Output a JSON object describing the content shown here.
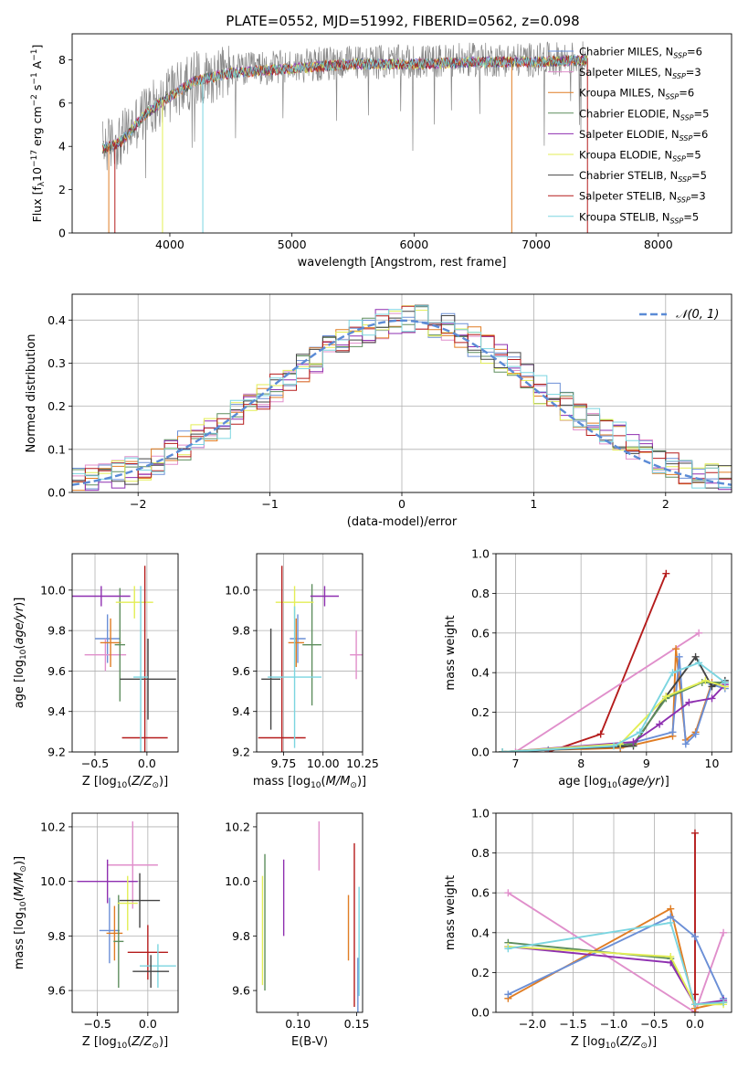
{
  "figure": {
    "title": "PLATE=0552, MJD=51992, FIBERID=0562, z=0.098"
  },
  "colors": {
    "grid": "#b0b0b0",
    "axis": "#000000",
    "normal_curve": "#5b8bd6"
  },
  "chart_data": [
    {
      "id": "spectrum",
      "type": "line",
      "xlabel": "wavelength [Angstrom, rest frame]",
      "ylabel": "Flux [f_λ 10^-17 erg cm^-2 s^-1 A^-1]",
      "xlim": [
        3200,
        8600
      ],
      "ylim": [
        0,
        9.2
      ],
      "xticks": [
        4000,
        5000,
        6000,
        7000,
        8000
      ],
      "yticks": [
        0,
        2,
        4,
        6,
        8
      ],
      "grid": false,
      "legend_position": "top-right",
      "data_envelope": {
        "x": [
          3450,
          3600,
          3800,
          4000,
          4200,
          4500,
          5000,
          5500,
          6000,
          6500,
          7000,
          7500
        ],
        "y": [
          4.0,
          4.3,
          5.6,
          6.4,
          7.1,
          7.5,
          7.7,
          7.9,
          7.9,
          8.0,
          8.0,
          8.1
        ]
      },
      "series": [
        {
          "name": "Chabrier MILES, N_SSP=6",
          "color": "#6b8fd6"
        },
        {
          "name": "Salpeter MILES, N_SSP=3",
          "color": "#e08fcb"
        },
        {
          "name": "Kroupa MILES, N_SSP=6",
          "color": "#e07d24"
        },
        {
          "name": "Chabrier ELODIE, N_SSP=5",
          "color": "#5e8e5e"
        },
        {
          "name": "Salpeter ELODIE, N_SSP=6",
          "color": "#8e2fb0"
        },
        {
          "name": "Kroupa ELODIE, N_SSP=5",
          "color": "#e3ee55"
        },
        {
          "name": "Chabrier STELIB, N_SSP=5",
          "color": "#444444"
        },
        {
          "name": "Salpeter STELIB, N_SSP=3",
          "color": "#b51c1c"
        },
        {
          "name": "Kroupa STELIB, N_SSP=5",
          "color": "#7bd5e0"
        }
      ]
    },
    {
      "id": "residuals",
      "type": "line",
      "xlabel": "(data-model)/error",
      "ylabel": "Normed distribution",
      "xlim": [
        -2.5,
        2.5
      ],
      "ylim": [
        0,
        0.46
      ],
      "xticks": [
        -2,
        -1,
        0,
        1,
        2
      ],
      "yticks": [
        0.0,
        0.1,
        0.2,
        0.3,
        0.4
      ],
      "grid": true,
      "legend_position": "top-right",
      "curve_name": "𝒩(0, 1)",
      "bin_edges_start": -2.5,
      "bin_width": 0.1,
      "reference_values": [
        0.03,
        0.03,
        0.04,
        0.04,
        0.05,
        0.06,
        0.07,
        0.09,
        0.11,
        0.13,
        0.14,
        0.16,
        0.18,
        0.2,
        0.22,
        0.24,
        0.27,
        0.29,
        0.31,
        0.33,
        0.35,
        0.37,
        0.38,
        0.39,
        0.4,
        0.4,
        0.4,
        0.39,
        0.38,
        0.37,
        0.35,
        0.33,
        0.31,
        0.29,
        0.27,
        0.24,
        0.22,
        0.2,
        0.18,
        0.16,
        0.14,
        0.13,
        0.11,
        0.09,
        0.07,
        0.06,
        0.05,
        0.04,
        0.04,
        0.03
      ]
    },
    {
      "id": "age_vs_Z",
      "type": "scatter",
      "xlabel": "Z [log10(Z/Z⊙)]",
      "ylabel": "age  [log10(age/yr)]",
      "xlim": [
        -0.72,
        0.3
      ],
      "ylim": [
        9.2,
        10.18
      ],
      "xticks": [
        -0.5,
        0.0
      ],
      "xtick_labels": [
        "−0.5",
        "0.0"
      ],
      "yticks": [
        9.2,
        9.4,
        9.6,
        9.8,
        10.0
      ],
      "grid": true,
      "points": [
        {
          "x": -0.38,
          "y": 9.76,
          "xerr": 0.12,
          "yerr": 0.12,
          "color": "#6b8fd6"
        },
        {
          "x": -0.4,
          "y": 9.68,
          "xerr": 0.2,
          "yerr": 0.08,
          "color": "#e08fcb"
        },
        {
          "x": -0.35,
          "y": 9.74,
          "xerr": 0.1,
          "yerr": 0.12,
          "color": "#e07d24"
        },
        {
          "x": -0.26,
          "y": 9.73,
          "xerr": 0.05,
          "yerr": 0.28,
          "color": "#5e8e5e"
        },
        {
          "x": -0.44,
          "y": 9.97,
          "xerr": 0.28,
          "yerr": 0.05,
          "color": "#8e2fb0"
        },
        {
          "x": -0.12,
          "y": 9.94,
          "xerr": 0.18,
          "yerr": 0.08,
          "color": "#e3ee55"
        },
        {
          "x": 0.01,
          "y": 9.56,
          "xerr": 0.27,
          "yerr": 0.2,
          "color": "#444444"
        },
        {
          "x": -0.02,
          "y": 9.27,
          "xerr": 0.22,
          "yerr": 0.85,
          "color": "#b51c1c"
        },
        {
          "x": -0.06,
          "y": 9.57,
          "xerr": 0.07,
          "yerr": 0.45,
          "color": "#7bd5e0"
        }
      ]
    },
    {
      "id": "age_vs_mass",
      "type": "scatter",
      "xlabel": "mass [log10(M/M⊙)]",
      "ylabel": "",
      "xlim": [
        9.58,
        10.25
      ],
      "ylim": [
        9.2,
        10.18
      ],
      "xticks": [
        9.75,
        10.0,
        10.25
      ],
      "xtick_labels": [
        "9.75",
        "10.00",
        "10.25"
      ],
      "yticks": [
        9.2,
        9.4,
        9.6,
        9.8,
        10.0
      ],
      "grid": true,
      "points": [
        {
          "x": 9.84,
          "y": 9.76,
          "xerr": 0.05,
          "yerr": 0.12,
          "color": "#6b8fd6"
        },
        {
          "x": 10.21,
          "y": 9.68,
          "xerr": 0.04,
          "yerr": 0.12,
          "color": "#e08fcb"
        },
        {
          "x": 9.83,
          "y": 9.74,
          "xerr": 0.05,
          "yerr": 0.12,
          "color": "#e07d24"
        },
        {
          "x": 9.93,
          "y": 9.73,
          "xerr": 0.06,
          "yerr": 0.3,
          "color": "#5e8e5e"
        },
        {
          "x": 10.01,
          "y": 9.97,
          "xerr": 0.09,
          "yerr": 0.05,
          "color": "#8e2fb0"
        },
        {
          "x": 9.82,
          "y": 9.94,
          "xerr": 0.12,
          "yerr": 0.08,
          "color": "#e3ee55"
        },
        {
          "x": 9.67,
          "y": 9.56,
          "xerr": 0.06,
          "yerr": 0.25,
          "color": "#444444"
        },
        {
          "x": 9.74,
          "y": 9.27,
          "xerr": 0.15,
          "yerr": 0.85,
          "color": "#b51c1c"
        },
        {
          "x": 9.82,
          "y": 9.57,
          "xerr": 0.17,
          "yerr": 0.35,
          "color": "#7bd5e0"
        }
      ]
    },
    {
      "id": "massweight_vs_age",
      "type": "line",
      "xlabel": "age  [log10(age/yr)]",
      "ylabel": "mass weight",
      "xlim": [
        6.7,
        10.3
      ],
      "ylim": [
        0,
        1.0
      ],
      "xticks": [
        7,
        8,
        9,
        10
      ],
      "yticks": [
        0.0,
        0.2,
        0.4,
        0.6,
        0.8,
        1.0
      ],
      "grid": true,
      "series": [
        {
          "color": "#b51c1c",
          "x": [
            7.5,
            8.3,
            9.3
          ],
          "y": [
            0.0,
            0.09,
            0.9
          ]
        },
        {
          "color": "#e08fcb",
          "x": [
            7.0,
            9.8
          ],
          "y": [
            0.0,
            0.6
          ]
        },
        {
          "color": "#e07d24",
          "x": [
            6.8,
            7.5,
            8.6,
            9.4,
            9.45,
            9.6,
            9.75,
            10.0,
            10.2
          ],
          "y": [
            0.0,
            0.01,
            0.02,
            0.08,
            0.52,
            0.06,
            0.1,
            0.35,
            0.33
          ]
        },
        {
          "color": "#6b8fd6",
          "x": [
            6.8,
            7.5,
            8.6,
            9.4,
            9.5,
            9.6,
            9.75,
            10.0,
            10.2
          ],
          "y": [
            0.0,
            0.01,
            0.03,
            0.1,
            0.48,
            0.04,
            0.09,
            0.34,
            0.32
          ]
        },
        {
          "color": "#444444",
          "x": [
            6.8,
            8.8,
            9.3,
            9.75,
            10.0,
            10.2
          ],
          "y": [
            0.0,
            0.03,
            0.28,
            0.48,
            0.33,
            0.36
          ]
        },
        {
          "color": "#5e8e5e",
          "x": [
            6.8,
            8.8,
            9.3,
            9.85,
            10.2
          ],
          "y": [
            0.0,
            0.04,
            0.27,
            0.35,
            0.35
          ]
        },
        {
          "color": "#8e2fb0",
          "x": [
            6.8,
            8.8,
            9.2,
            9.65,
            10.0,
            10.2
          ],
          "y": [
            0.0,
            0.05,
            0.14,
            0.25,
            0.27,
            0.34
          ]
        },
        {
          "color": "#e3ee55",
          "x": [
            6.8,
            8.6,
            9.3,
            9.9,
            10.2
          ],
          "y": [
            0.0,
            0.04,
            0.28,
            0.36,
            0.33
          ]
        },
        {
          "color": "#7bd5e0",
          "x": [
            6.8,
            8.5,
            8.9,
            9.4,
            9.8,
            10.2
          ],
          "y": [
            0.0,
            0.03,
            0.1,
            0.4,
            0.45,
            0.35
          ]
        }
      ]
    },
    {
      "id": "mass_vs_Z",
      "type": "scatter",
      "xlabel": "Z [log10(Z/Z⊙)]",
      "ylabel": "mass [log10(M/M⊙)]",
      "xlim": [
        -0.75,
        0.3
      ],
      "ylim": [
        9.52,
        10.25
      ],
      "xticks": [
        -0.5,
        0.0
      ],
      "xtick_labels": [
        "−0.5",
        "0.0"
      ],
      "yticks": [
        9.6,
        9.8,
        10.0,
        10.2
      ],
      "grid": true,
      "points": [
        {
          "x": -0.38,
          "y": 9.82,
          "xerr": 0.1,
          "yerr": 0.12,
          "color": "#6b8fd6"
        },
        {
          "x": -0.15,
          "y": 10.06,
          "xerr": 0.25,
          "yerr": 0.16,
          "color": "#e08fcb"
        },
        {
          "x": -0.33,
          "y": 9.81,
          "xerr": 0.08,
          "yerr": 0.1,
          "color": "#e07d24"
        },
        {
          "x": -0.29,
          "y": 9.78,
          "xerr": 0.05,
          "yerr": 0.17,
          "color": "#5e8e5e"
        },
        {
          "x": -0.4,
          "y": 10.0,
          "xerr": 0.3,
          "yerr": 0.08,
          "color": "#8e2fb0"
        },
        {
          "x": -0.2,
          "y": 9.92,
          "xerr": 0.1,
          "yerr": 0.1,
          "color": "#e3ee55"
        },
        {
          "x": -0.08,
          "y": 9.93,
          "xerr": 0.2,
          "yerr": 0.1,
          "color": "#444444"
        },
        {
          "x": 0.0,
          "y": 9.74,
          "xerr": 0.2,
          "yerr": 0.1,
          "color": "#b51c1c"
        },
        {
          "x": 0.1,
          "y": 9.69,
          "xerr": 0.18,
          "yerr": 0.08,
          "color": "#7bd5e0"
        },
        {
          "x": 0.03,
          "y": 9.67,
          "xerr": 0.18,
          "yerr": 0.06,
          "color": "#444444"
        }
      ]
    },
    {
      "id": "mass_vs_ebv",
      "type": "scatter",
      "xlabel": "E(B-V)",
      "ylabel": "",
      "xlim": [
        0.065,
        0.155
      ],
      "ylim": [
        9.52,
        10.25
      ],
      "xticks": [
        0.1,
        0.15
      ],
      "xtick_labels": [
        "0.10",
        "0.15"
      ],
      "yticks": [
        9.6,
        9.8,
        10.0,
        10.2
      ],
      "grid": false,
      "points": [
        {
          "x": 0.07,
          "y": 9.82,
          "yerr": 0.2,
          "color": "#e3ee55"
        },
        {
          "x": 0.072,
          "y": 9.85,
          "yerr": 0.25,
          "color": "#5e8e5e"
        },
        {
          "x": 0.088,
          "y": 9.94,
          "yerr": 0.14,
          "color": "#8e2fb0"
        },
        {
          "x": 0.118,
          "y": 10.13,
          "yerr": 0.09,
          "color": "#e08fcb"
        },
        {
          "x": 0.143,
          "y": 9.83,
          "yerr": 0.12,
          "color": "#e07d24"
        },
        {
          "x": 0.148,
          "y": 9.84,
          "yerr": 0.3,
          "color": "#b51c1c"
        },
        {
          "x": 0.151,
          "y": 9.6,
          "yerr": 0.12,
          "color": "#6b8fd6"
        },
        {
          "x": 0.152,
          "y": 9.78,
          "yerr": 0.2,
          "color": "#7bd5e0"
        }
      ]
    },
    {
      "id": "massweight_vs_Z",
      "type": "line",
      "xlabel": "Z [log10(Z/Z⊙)]",
      "ylabel": "mass weight",
      "xlim": [
        -2.45,
        0.45
      ],
      "ylim": [
        0,
        1.0
      ],
      "xticks": [
        -2.0,
        -1.5,
        -1.0,
        -0.5,
        0.0
      ],
      "xtick_labels": [
        "−2.0",
        "−1.5",
        "−1.0",
        "−0.5",
        "0.0"
      ],
      "yticks": [
        0.0,
        0.2,
        0.4,
        0.6,
        0.8,
        1.0
      ],
      "grid": true,
      "series": [
        {
          "color": "#e08fcb",
          "x": [
            -2.3,
            0.0,
            0.35
          ],
          "y": [
            0.6,
            0.0,
            0.4
          ]
        },
        {
          "color": "#b51c1c",
          "x": [
            0.0,
            0.0,
            0.0
          ],
          "y": [
            0.0,
            0.9,
            0.09
          ]
        },
        {
          "color": "#e07d24",
          "x": [
            -2.3,
            -0.3,
            0.0,
            0.35
          ],
          "y": [
            0.07,
            0.52,
            0.02,
            0.05
          ]
        },
        {
          "color": "#6b8fd6",
          "x": [
            -2.3,
            -0.3,
            0.0,
            0.35
          ],
          "y": [
            0.09,
            0.48,
            0.38,
            0.07
          ]
        },
        {
          "color": "#5e8e5e",
          "x": [
            -2.3,
            -0.3,
            0.0,
            0.35
          ],
          "y": [
            0.35,
            0.27,
            0.04,
            0.05
          ]
        },
        {
          "color": "#8e2fb0",
          "x": [
            -2.3,
            -0.3,
            0.0,
            0.35
          ],
          "y": [
            0.33,
            0.25,
            0.04,
            0.06
          ]
        },
        {
          "color": "#e3ee55",
          "x": [
            -2.3,
            -0.3,
            0.0,
            0.35
          ],
          "y": [
            0.33,
            0.28,
            0.04,
            0.04
          ]
        },
        {
          "color": "#7bd5e0",
          "x": [
            -2.3,
            -0.3,
            0.0,
            0.35
          ],
          "y": [
            0.32,
            0.45,
            0.04,
            0.05
          ]
        }
      ]
    }
  ]
}
